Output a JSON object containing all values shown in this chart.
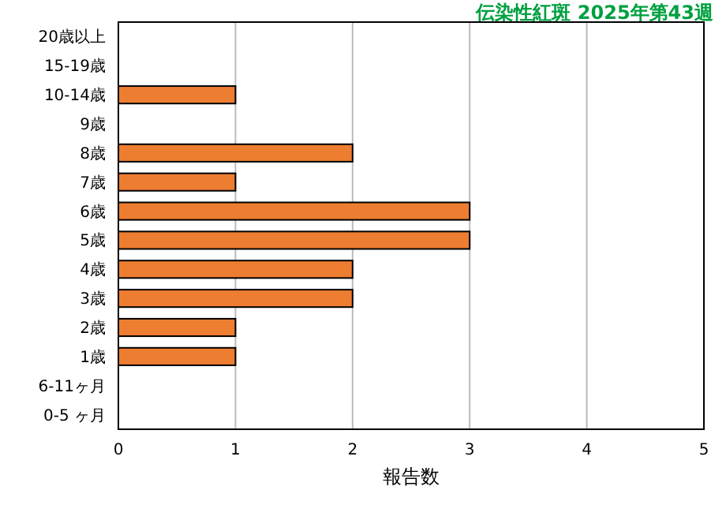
{
  "chart_data": {
    "type": "bar",
    "orientation": "horizontal",
    "title": "伝染性紅斑 2025年第43週",
    "xlabel": "報告数",
    "categories": [
      "20歳以上",
      "15-19歳",
      "10-14歳",
      "9歳",
      "8歳",
      "7歳",
      "6歳",
      "5歳",
      "4歳",
      "3歳",
      "2歳",
      "1歳",
      "6-11ヶ月",
      "0-5 ヶ月"
    ],
    "values": [
      0,
      0,
      1,
      0,
      2,
      1,
      3,
      3,
      2,
      2,
      1,
      1,
      0,
      0
    ],
    "color": "#ed7d31",
    "xlim": [
      0,
      5
    ],
    "xticks": [
      0,
      1,
      2,
      3,
      4,
      5
    ],
    "grid": "x"
  }
}
